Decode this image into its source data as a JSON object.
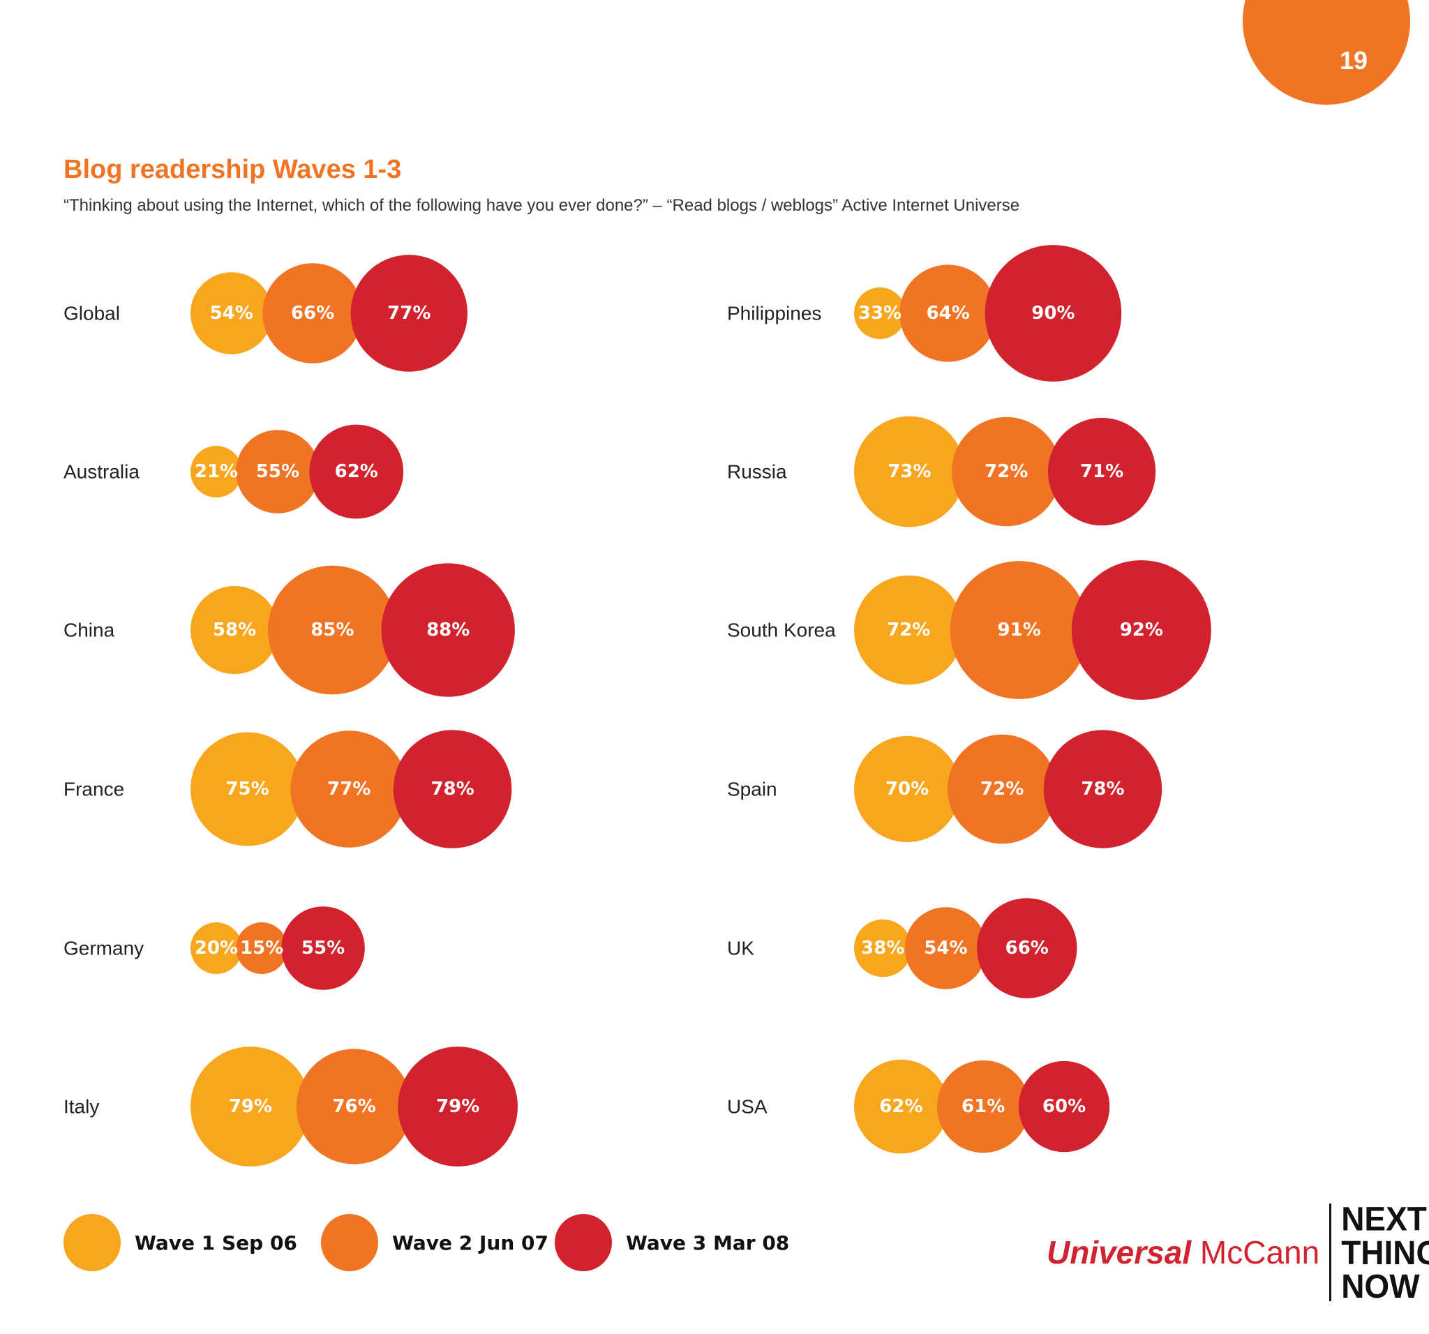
{
  "page_number": "19",
  "title": "Blog readership Waves 1-3",
  "subtitle": "“Thinking about using the Internet, which of the following have you ever done?” – “Read blogs / weblogs” Active Internet Universe",
  "colors": {
    "accent": "#F07423",
    "wave1": "#F9A61F",
    "wave2": "#F07423",
    "wave3": "#D2222D"
  },
  "legend": [
    {
      "label": "Wave 1 Sep 06",
      "color": "#F9A61F"
    },
    {
      "label": "Wave 2 Jun 07",
      "color": "#F07423"
    },
    {
      "label": "Wave 3 Mar 08",
      "color": "#D2222D"
    }
  ],
  "logo": {
    "brand_part1": "Universal",
    "brand_part2": "McCann",
    "tag_lines": [
      "NEXT",
      "THING",
      "NOW"
    ]
  },
  "chart_data": {
    "type": "bubble",
    "title": "Blog readership Waves 1-3",
    "series_names": [
      "Wave 1 Sep 06",
      "Wave 2 Jun 07",
      "Wave 3 Mar 08"
    ],
    "rows": [
      {
        "country": "Global",
        "values": [
          54,
          66,
          77
        ],
        "labels": [
          "54%",
          "66%",
          "77%"
        ]
      },
      {
        "country": "Australia",
        "values": [
          21,
          55,
          62
        ],
        "labels": [
          "21%",
          "55%",
          "62%"
        ]
      },
      {
        "country": "China",
        "values": [
          58,
          85,
          88
        ],
        "labels": [
          "58%",
          "85%",
          "88%"
        ]
      },
      {
        "country": "France",
        "values": [
          75,
          77,
          78
        ],
        "labels": [
          "75%",
          "77%",
          "78%"
        ]
      },
      {
        "country": "Germany",
        "values": [
          20,
          15,
          55
        ],
        "labels": [
          "20%",
          "15%",
          "55%"
        ]
      },
      {
        "country": "Italy",
        "values": [
          79,
          76,
          79
        ],
        "labels": [
          "79%",
          "76%",
          "79%"
        ]
      },
      {
        "country": "Philippines",
        "values": [
          33,
          64,
          90
        ],
        "labels": [
          "33%",
          "64%",
          "90%"
        ]
      },
      {
        "country": "Russia",
        "values": [
          73,
          72,
          71
        ],
        "labels": [
          "73%",
          "72%",
          "71%"
        ]
      },
      {
        "country": "South Korea",
        "values": [
          72,
          91,
          92
        ],
        "labels": [
          "72%",
          "91%",
          "92%"
        ]
      },
      {
        "country": "Spain",
        "values": [
          70,
          72,
          78
        ],
        "labels": [
          "70%",
          "72%",
          "78%"
        ]
      },
      {
        "country": "UK",
        "values": [
          38,
          54,
          66
        ],
        "labels": [
          "38%",
          "54%",
          "66%"
        ]
      },
      {
        "country": "USA",
        "values": [
          62,
          61,
          60
        ],
        "labels": [
          "62%",
          "61%",
          "60%"
        ]
      }
    ]
  }
}
